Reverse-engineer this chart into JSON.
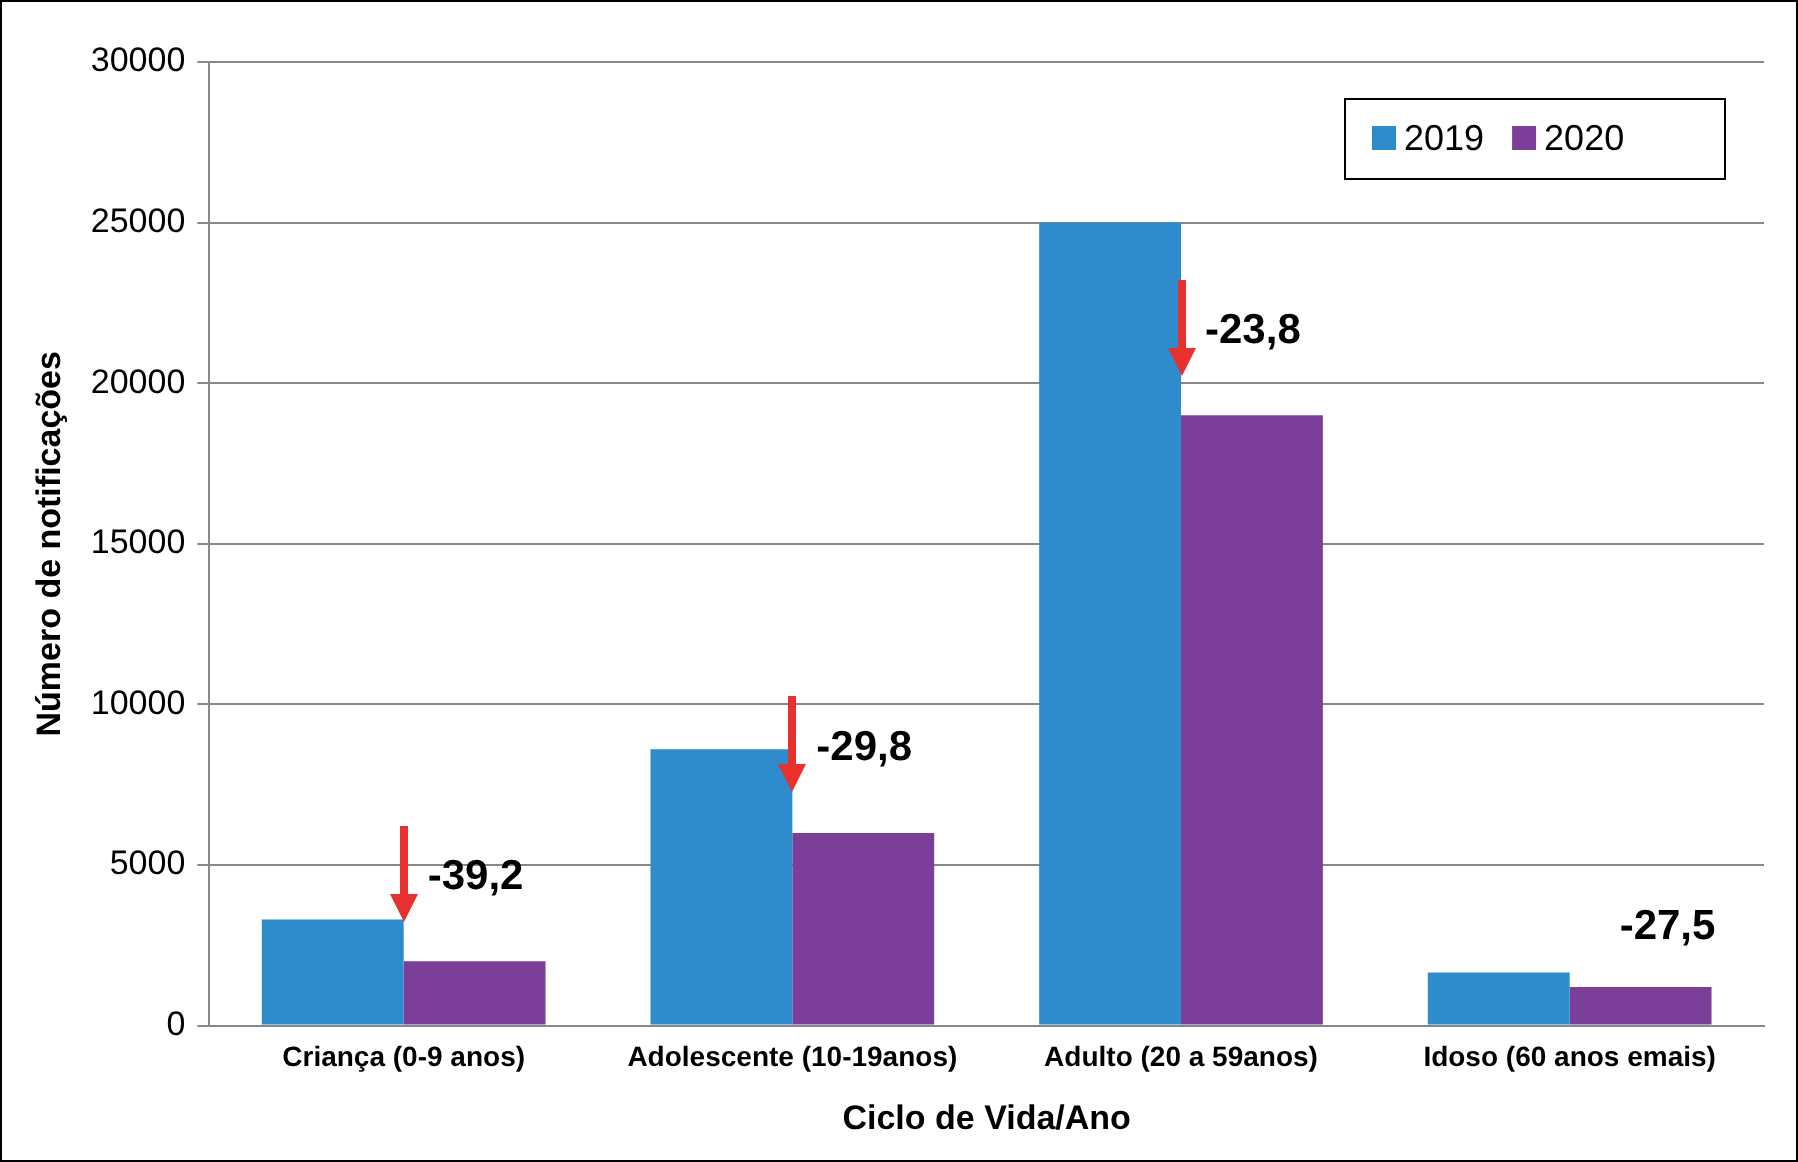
{
  "chart_data": {
    "type": "bar",
    "xlabel": "Ciclo de Vida/Ano",
    "ylabel": "Número de notificações",
    "categories": [
      "Criança (0-9 anos)",
      "Adolescente (10-19anos)",
      "Adulto (20 a 59anos)",
      "Idoso (60 anos emais)"
    ],
    "series": [
      {
        "name": "2019",
        "color": "#2e8bcc",
        "values": [
          3300,
          8600,
          25000,
          1650
        ]
      },
      {
        "name": "2020",
        "color": "#7b3f9a",
        "values": [
          2000,
          6000,
          19000,
          1200
        ]
      }
    ],
    "ylim": [
      0,
      30000
    ],
    "yticks": [
      0,
      5000,
      10000,
      15000,
      20000,
      25000,
      30000
    ],
    "grid": "y",
    "legend": "top right",
    "annotations": [
      "-39,2",
      "-29,8",
      "-23,8",
      "-27,5"
    ]
  }
}
